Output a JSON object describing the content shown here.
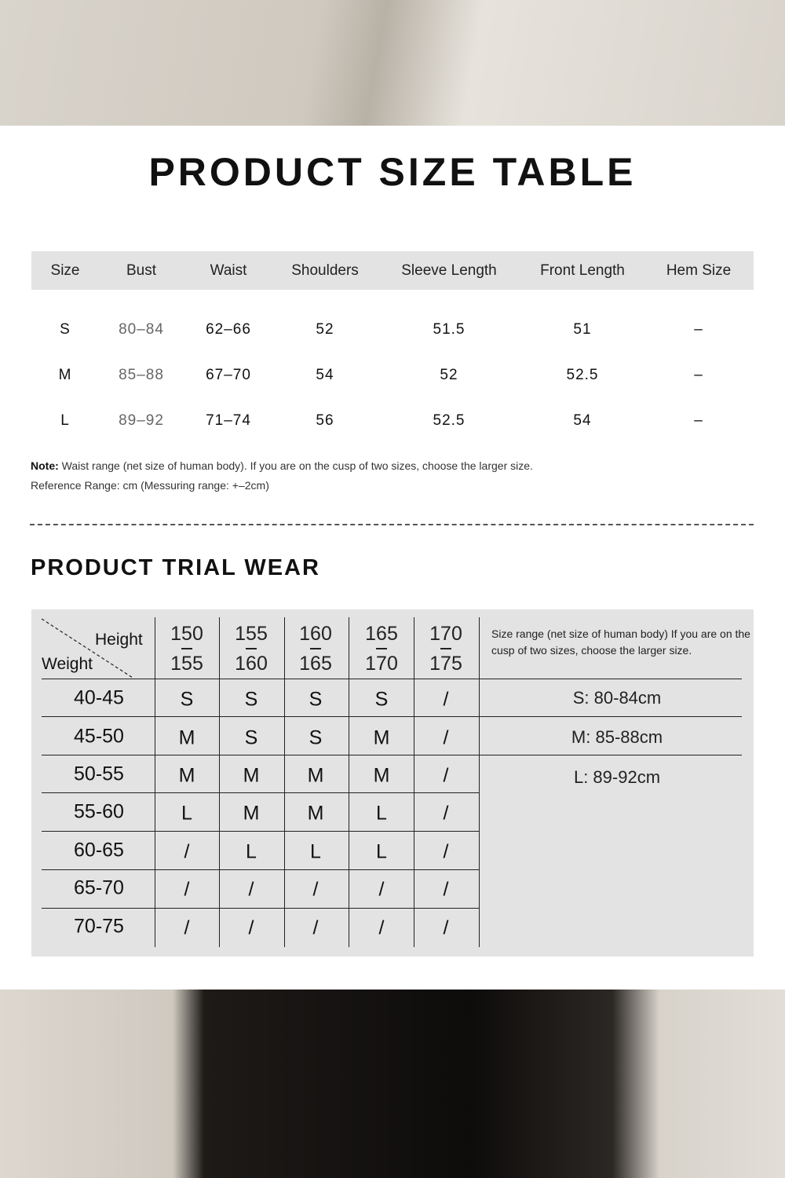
{
  "title": "PRODUCT SIZE TABLE",
  "size_table": {
    "headers": [
      "Size",
      "Bust",
      "Waist",
      "Shoulders",
      "Sleeve Length",
      "Front Length",
      "Hem Size"
    ],
    "rows": [
      [
        "S",
        "80–84",
        "62–66",
        "52",
        "51.5",
        "51",
        "–"
      ],
      [
        "M",
        "85–88",
        "67–70",
        "54",
        "52",
        "52.5",
        "–"
      ],
      [
        "L",
        "89–92",
        "71–74",
        "56",
        "52.5",
        "54",
        "–"
      ]
    ]
  },
  "note": {
    "label": "Note:",
    "text": " Waist range (net size of human body). If you are on the cusp of two sizes, choose the larger size.",
    "reference": "Reference Range: cm (Messuring range: +–2cm)"
  },
  "trial": {
    "title": "PRODUCT TRIAL WEAR",
    "corner_height": "Height",
    "corner_weight": "Weight",
    "heights": [
      [
        "150",
        "155"
      ],
      [
        "155",
        "160"
      ],
      [
        "160",
        "165"
      ],
      [
        "165",
        "170"
      ],
      [
        "170",
        "175"
      ]
    ],
    "range_note": "Size range (net size of human body) If you are on the cusp of two sizes, choose the larger size.",
    "weights": [
      "40-45",
      "45-50",
      "50-55",
      "55-60",
      "60-65",
      "65-70",
      "70-75"
    ],
    "grid": [
      [
        "S",
        "S",
        "S",
        "S",
        "/"
      ],
      [
        "M",
        "S",
        "S",
        "M",
        "/"
      ],
      [
        "M",
        "M",
        "M",
        "M",
        "/"
      ],
      [
        "L",
        "M",
        "M",
        "L",
        "/"
      ],
      [
        "/",
        "L",
        "L",
        "L",
        "/"
      ],
      [
        "/",
        "/",
        "/",
        "/",
        "/"
      ],
      [
        "/",
        "/",
        "/",
        "/",
        "/"
      ]
    ],
    "size_ranges": [
      "S: 80-84cm",
      "M: 85-88cm",
      "L: 89-92cm"
    ]
  }
}
